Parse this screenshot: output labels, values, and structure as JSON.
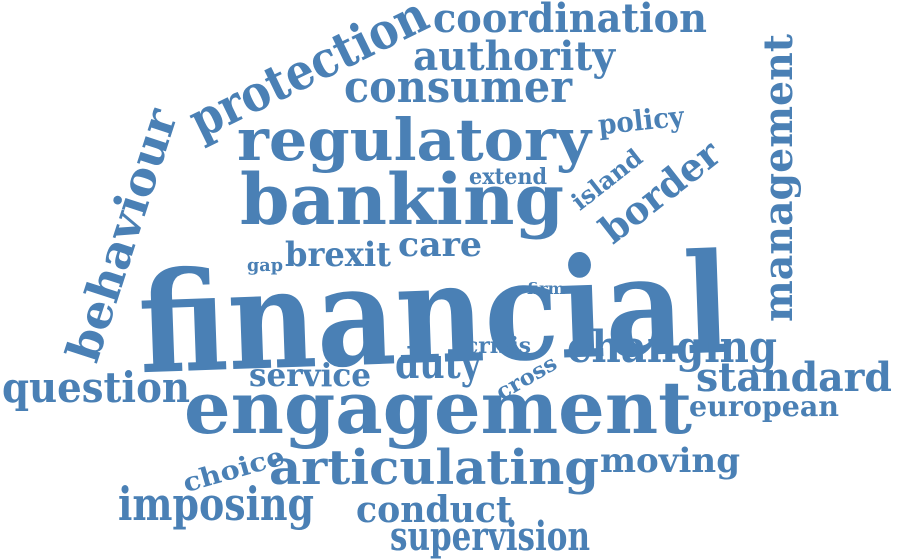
{
  "colors": {
    "background": "#ffffff",
    "word": "#4a80b5"
  },
  "word_cloud": {
    "words": [
      {
        "id": "financial",
        "text": "financial"
      },
      {
        "id": "engagement",
        "text": "engagement"
      },
      {
        "id": "banking",
        "text": "banking"
      },
      {
        "id": "regulatory",
        "text": "regulatory"
      },
      {
        "id": "articulating",
        "text": "articulating"
      },
      {
        "id": "protection",
        "text": "protection"
      },
      {
        "id": "behaviour",
        "text": "behaviour"
      },
      {
        "id": "management",
        "text": "management"
      },
      {
        "id": "consumer",
        "text": "consumer"
      },
      {
        "id": "coordination",
        "text": "coordination"
      },
      {
        "id": "authority",
        "text": "authority"
      },
      {
        "id": "changing",
        "text": "changing"
      },
      {
        "id": "standard",
        "text": "standard"
      },
      {
        "id": "question",
        "text": "question"
      },
      {
        "id": "imposing",
        "text": "imposing"
      },
      {
        "id": "supervision",
        "text": "supervision"
      },
      {
        "id": "conduct",
        "text": "conduct"
      },
      {
        "id": "border",
        "text": "border"
      },
      {
        "id": "duty",
        "text": "duty"
      },
      {
        "id": "brexit",
        "text": "brexit"
      },
      {
        "id": "care",
        "text": "care"
      },
      {
        "id": "service",
        "text": "service"
      },
      {
        "id": "moving",
        "text": "moving"
      },
      {
        "id": "european",
        "text": "european"
      },
      {
        "id": "choice",
        "text": "choice"
      },
      {
        "id": "policy",
        "text": "policy"
      },
      {
        "id": "island",
        "text": "island"
      },
      {
        "id": "crisis",
        "text": "crisis"
      },
      {
        "id": "cross",
        "text": "cross"
      },
      {
        "id": "extend",
        "text": "extend"
      },
      {
        "id": "gap",
        "text": "gap"
      },
      {
        "id": "firm",
        "text": "firm"
      }
    ]
  }
}
